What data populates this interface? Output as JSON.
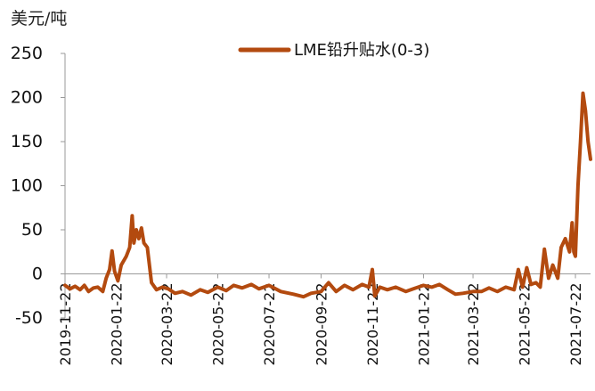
{
  "chart_data": {
    "type": "line",
    "ylabel": "美元/吨",
    "ylim": [
      -50,
      250
    ],
    "yticks": [
      -50,
      0,
      50,
      100,
      150,
      200,
      250
    ],
    "x_tick_labels": [
      "2019-11-22",
      "2020-01-22",
      "2020-03-22",
      "2020-05-22",
      "2020-07-22",
      "2020-09-22",
      "2020-11-22",
      "2021-01-22",
      "2021-03-22",
      "2021-05-22",
      "2021-07-22"
    ],
    "grid": false,
    "legend_position": "top-center",
    "color": "#b34a0f",
    "series": [
      {
        "name": "LME铅升贴水(0-3)",
        "points": [
          [
            "2019-11-22",
            -13
          ],
          [
            "2019-11-28",
            -17
          ],
          [
            "2019-12-04",
            -14
          ],
          [
            "2019-12-10",
            -18
          ],
          [
            "2019-12-15",
            -13
          ],
          [
            "2019-12-20",
            -20
          ],
          [
            "2019-12-26",
            -16
          ],
          [
            "2019-12-31",
            -15
          ],
          [
            "2020-01-06",
            -20
          ],
          [
            "2020-01-10",
            -5
          ],
          [
            "2020-01-14",
            5
          ],
          [
            "2020-01-17",
            26
          ],
          [
            "2020-01-20",
            3
          ],
          [
            "2020-01-24",
            -8
          ],
          [
            "2020-01-28",
            10
          ],
          [
            "2020-02-03",
            20
          ],
          [
            "2020-02-07",
            30
          ],
          [
            "2020-02-10",
            66
          ],
          [
            "2020-02-12",
            35
          ],
          [
            "2020-02-15",
            50
          ],
          [
            "2020-02-18",
            40
          ],
          [
            "2020-02-21",
            52
          ],
          [
            "2020-02-24",
            35
          ],
          [
            "2020-02-28",
            30
          ],
          [
            "2020-03-04",
            -10
          ],
          [
            "2020-03-10",
            -18
          ],
          [
            "2020-03-17",
            -15
          ],
          [
            "2020-03-24",
            -17
          ],
          [
            "2020-04-01",
            -22
          ],
          [
            "2020-04-10",
            -20
          ],
          [
            "2020-04-20",
            -24
          ],
          [
            "2020-05-01",
            -18
          ],
          [
            "2020-05-10",
            -21
          ],
          [
            "2020-05-22",
            -15
          ],
          [
            "2020-06-01",
            -19
          ],
          [
            "2020-06-10",
            -13
          ],
          [
            "2020-06-20",
            -16
          ],
          [
            "2020-07-01",
            -12
          ],
          [
            "2020-07-10",
            -17
          ],
          [
            "2020-07-22",
            -13
          ],
          [
            "2020-08-05",
            -20
          ],
          [
            "2020-08-20",
            -23
          ],
          [
            "2020-09-01",
            -26
          ],
          [
            "2020-09-10",
            -22
          ],
          [
            "2020-09-22",
            -20
          ],
          [
            "2020-10-01",
            -10
          ],
          [
            "2020-10-10",
            -20
          ],
          [
            "2020-10-20",
            -13
          ],
          [
            "2020-10-30",
            -18
          ],
          [
            "2020-11-10",
            -12
          ],
          [
            "2020-11-18",
            -15
          ],
          [
            "2020-11-22",
            5
          ],
          [
            "2020-11-25",
            -25
          ],
          [
            "2020-12-01",
            -15
          ],
          [
            "2020-12-10",
            -18
          ],
          [
            "2020-12-20",
            -15
          ],
          [
            "2021-01-01",
            -20
          ],
          [
            "2021-01-10",
            -17
          ],
          [
            "2021-01-22",
            -13
          ],
          [
            "2021-02-01",
            -15
          ],
          [
            "2021-02-10",
            -12
          ],
          [
            "2021-02-20",
            -18
          ],
          [
            "2021-03-01",
            -23
          ],
          [
            "2021-03-10",
            -22
          ],
          [
            "2021-03-22",
            -20
          ],
          [
            "2021-04-01",
            -20
          ],
          [
            "2021-04-10",
            -16
          ],
          [
            "2021-04-20",
            -20
          ],
          [
            "2021-04-30",
            -15
          ],
          [
            "2021-05-10",
            -18
          ],
          [
            "2021-05-15",
            5
          ],
          [
            "2021-05-20",
            -15
          ],
          [
            "2021-05-25",
            7
          ],
          [
            "2021-05-30",
            -12
          ],
          [
            "2021-06-05",
            -10
          ],
          [
            "2021-06-10",
            -15
          ],
          [
            "2021-06-15",
            28
          ],
          [
            "2021-06-20",
            -5
          ],
          [
            "2021-06-25",
            10
          ],
          [
            "2021-07-01",
            -5
          ],
          [
            "2021-07-05",
            30
          ],
          [
            "2021-07-10",
            40
          ],
          [
            "2021-07-15",
            25
          ],
          [
            "2021-07-18",
            58
          ],
          [
            "2021-07-20",
            25
          ],
          [
            "2021-07-22",
            20
          ],
          [
            "2021-07-25",
            100
          ],
          [
            "2021-07-28",
            150
          ],
          [
            "2021-07-31",
            205
          ],
          [
            "2021-08-03",
            185
          ],
          [
            "2021-08-06",
            150
          ],
          [
            "2021-08-09",
            130
          ]
        ]
      }
    ]
  }
}
